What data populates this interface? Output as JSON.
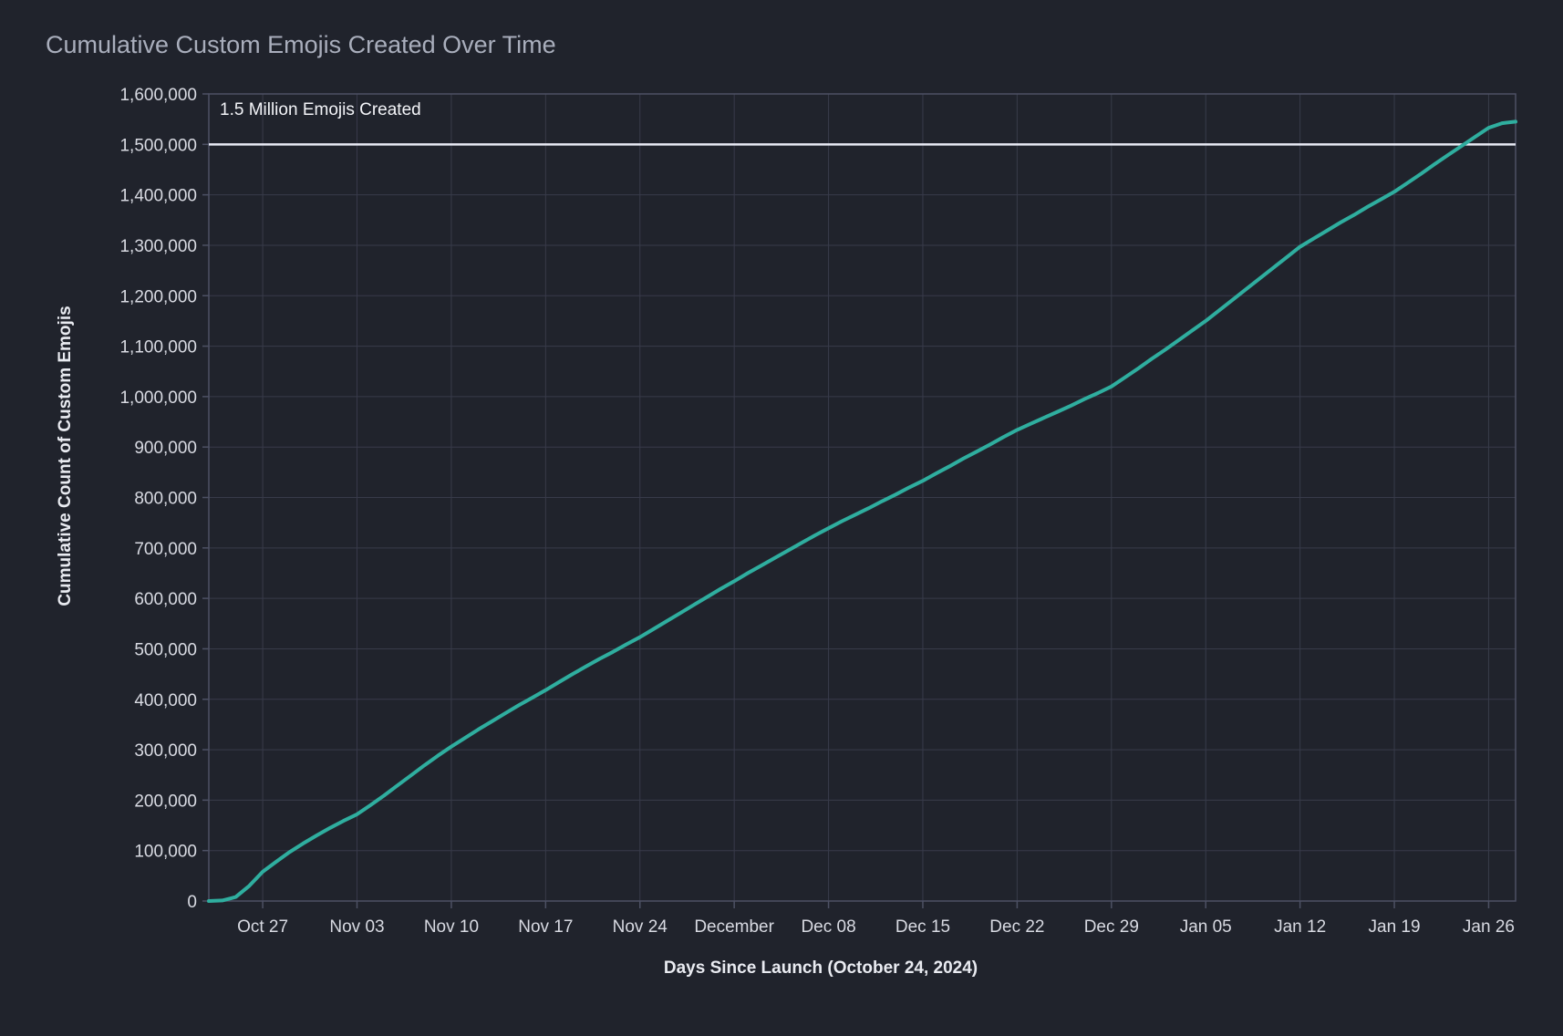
{
  "chart_data": {
    "type": "line",
    "title": "Cumulative Custom Emojis Created Over Time",
    "xlabel": "Days Since Launch (October 24, 2024)",
    "ylabel": "Cumulative Count of Custom Emojis",
    "launch_date": "October 24, 2024",
    "grid": true,
    "legend": "none",
    "annotation": {
      "text": "1.5 Million Emojis Created",
      "value": 1500000
    },
    "x_axis": {
      "unit": "day",
      "start_day": -1,
      "end_day": 96,
      "ticks": [
        {
          "day": 3,
          "label": "Oct 27"
        },
        {
          "day": 10,
          "label": "Nov 03"
        },
        {
          "day": 17,
          "label": "Nov 10"
        },
        {
          "day": 24,
          "label": "Nov 17"
        },
        {
          "day": 31,
          "label": "Nov 24"
        },
        {
          "day": 38,
          "label": "December"
        },
        {
          "day": 45,
          "label": "Dec 08"
        },
        {
          "day": 52,
          "label": "Dec 15"
        },
        {
          "day": 59,
          "label": "Dec 22"
        },
        {
          "day": 66,
          "label": "Dec 29"
        },
        {
          "day": 73,
          "label": "Jan 05"
        },
        {
          "day": 80,
          "label": "Jan 12"
        },
        {
          "day": 87,
          "label": "Jan 19"
        },
        {
          "day": 94,
          "label": "Jan 26"
        }
      ]
    },
    "y_axis": {
      "min": 0,
      "max": 1600000,
      "tick_step": 100000,
      "ticks": [
        {
          "value": 0,
          "label": "0"
        },
        {
          "value": 100000,
          "label": "100,000"
        },
        {
          "value": 200000,
          "label": "200,000"
        },
        {
          "value": 300000,
          "label": "300,000"
        },
        {
          "value": 400000,
          "label": "400,000"
        },
        {
          "value": 500000,
          "label": "500,000"
        },
        {
          "value": 600000,
          "label": "600,000"
        },
        {
          "value": 700000,
          "label": "700,000"
        },
        {
          "value": 800000,
          "label": "800,000"
        },
        {
          "value": 900000,
          "label": "900,000"
        },
        {
          "value": 1000000,
          "label": "1,000,000"
        },
        {
          "value": 1100000,
          "label": "1,100,000"
        },
        {
          "value": 1200000,
          "label": "1,200,000"
        },
        {
          "value": 1300000,
          "label": "1,300,000"
        },
        {
          "value": 1400000,
          "label": "1,400,000"
        },
        {
          "value": 1500000,
          "label": "1,500,000"
        },
        {
          "value": 1600000,
          "label": "1,600,000"
        }
      ]
    },
    "series": [
      {
        "name": "Cumulative Custom Emojis",
        "color": "#2fae9f",
        "x_start_day": -1,
        "x_step_days": 1,
        "values": [
          0,
          1000,
          8000,
          30000,
          58000,
          78000,
          97000,
          114000,
          130000,
          145000,
          159000,
          172000,
          190000,
          209000,
          229000,
          249000,
          269000,
          288000,
          306000,
          323000,
          340000,
          356000,
          372000,
          388000,
          403000,
          418000,
          434000,
          450000,
          465000,
          480000,
          494000,
          509000,
          523000,
          539000,
          555000,
          571000,
          587000,
          603000,
          619000,
          634000,
          650000,
          665000,
          680000,
          695000,
          710000,
          725000,
          739000,
          753000,
          766000,
          779000,
          793000,
          806000,
          820000,
          833000,
          848000,
          862000,
          877000,
          891000,
          905000,
          920000,
          934000,
          946000,
          958000,
          970000,
          982000,
          995000,
          1007000,
          1020000,
          1038000,
          1056000,
          1075000,
          1093000,
          1112000,
          1131000,
          1150000,
          1171000,
          1192000,
          1213000,
          1234000,
          1255000,
          1276000,
          1297000,
          1313000,
          1329000,
          1345000,
          1360000,
          1376000,
          1391000,
          1406000,
          1424000,
          1442000,
          1461000,
          1479000,
          1497000,
          1515000,
          1533000,
          1542000,
          1545000
        ]
      }
    ],
    "theme": {
      "background": "#20232c",
      "gridline": "#383b4a",
      "axis_border": "#4d5164",
      "tick_text": "#d8dae2",
      "axis_title_text": "#e9ebf1",
      "chart_title_text": "#a9aebc",
      "annotation_line": "#e8eaf4",
      "annotation_text": "#f3f4f8",
      "series_line": "#2fae9f"
    }
  }
}
